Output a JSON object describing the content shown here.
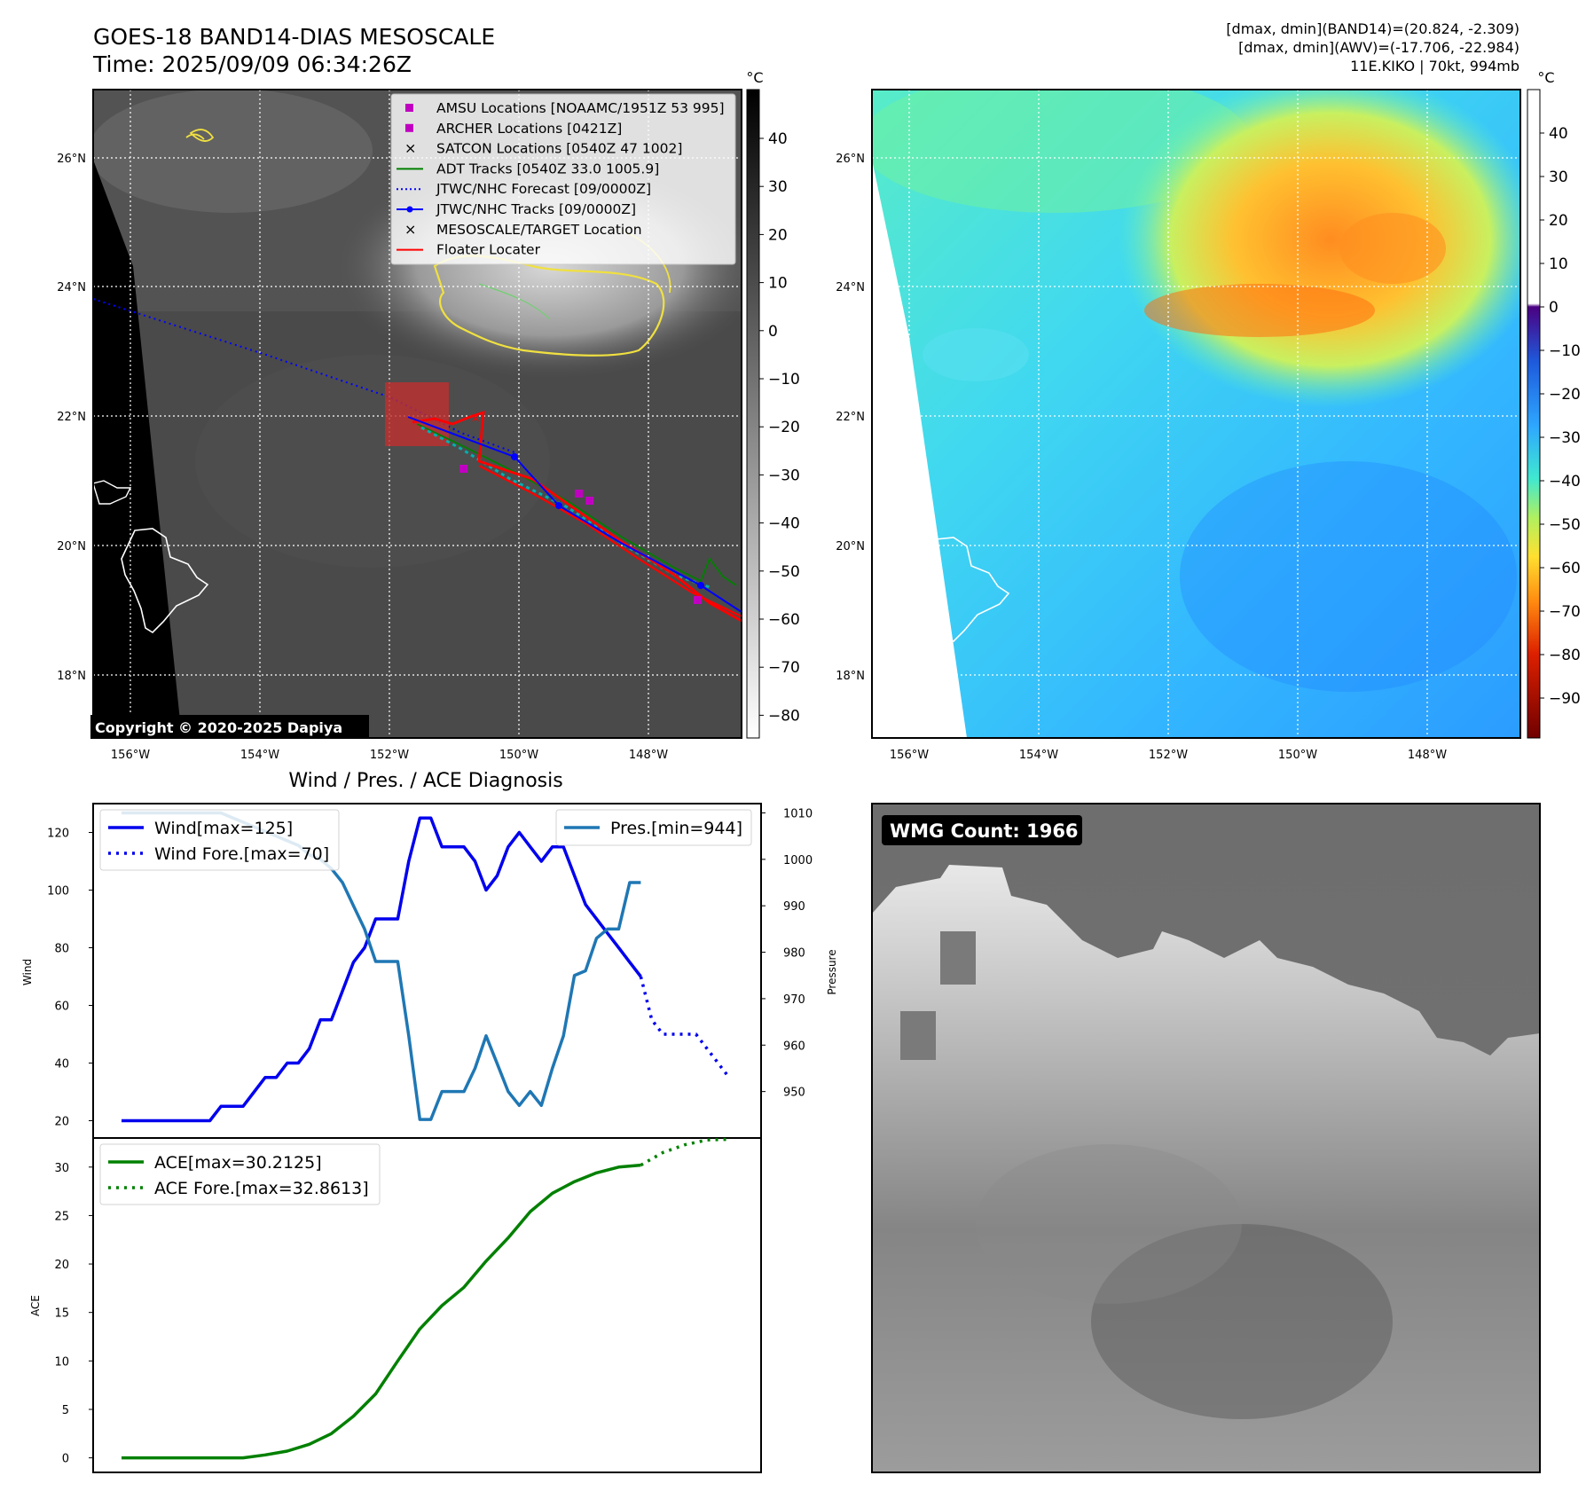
{
  "header": {
    "title": "GOES-18 BAND14-DIAS MESOSCALE",
    "time": "Time: 2025/09/09 06:34:26Z",
    "dmax_band14": "[dmax, dmin](BAND14)=(20.824, -2.309)",
    "dmax_awv": "[dmax, dmin](AWV)=(-17.706, -22.984)",
    "storm_info": "11E.KIKO | 70kt, 994mb"
  },
  "maps": {
    "lat_labels": [
      "26°N",
      "24°N",
      "22°N",
      "20°N",
      "18°N"
    ],
    "lon_labels": [
      "156°W",
      "154°W",
      "152°W",
      "150°W",
      "148°W"
    ],
    "copyright": "Copyright © 2020-2025 Dapiya",
    "left_colorbar": {
      "unit": "°C",
      "ticks": [
        "40",
        "30",
        "20",
        "10",
        "0",
        "−10",
        "−20",
        "−30",
        "−40",
        "−50",
        "−60",
        "−70",
        "−80"
      ]
    },
    "right_colorbar": {
      "unit": "°C",
      "ticks": [
        "40",
        "30",
        "20",
        "10",
        "0",
        "−10",
        "−20",
        "−30",
        "−40",
        "−50",
        "−60",
        "−70",
        "−80",
        "−90"
      ]
    },
    "legend": [
      {
        "label": "AMSU Locations [NOAAMC/1951Z 53 995]",
        "color": "#c000c0",
        "marker": "square"
      },
      {
        "label": "ARCHER Locations [0421Z]",
        "color": "#c000c0",
        "marker": "square"
      },
      {
        "label": "SATCON Locations [0540Z 47 1002]",
        "color": "#00b0b0",
        "marker": "x"
      },
      {
        "label": "ADT Tracks [0540Z 33.0 1005.9]",
        "color": "#008000",
        "marker": "line"
      },
      {
        "label": "JTWC/NHC Forecast [09/0000Z]",
        "color": "#0000ff",
        "marker": "dotted"
      },
      {
        "label": "JTWC/NHC Tracks [09/0000Z]",
        "color": "#0000ff",
        "marker": "line-dot"
      },
      {
        "label": "MESOSCALE/TARGET Location",
        "color": "#ff0000",
        "marker": "x"
      },
      {
        "label": "Floater Locater",
        "color": "#ff0000",
        "marker": "line"
      }
    ]
  },
  "diagnosis": {
    "title": "Wind / Pres. / ACE Diagnosis",
    "wind_ylabel": "Wind",
    "pressure_ylabel": "Pressure",
    "ace_ylabel": "ACE",
    "wind_legend": [
      "Wind[max=125]",
      "Wind Fore.[max=70]"
    ],
    "pressure_legend": "Pres.[min=944]",
    "ace_legend": [
      "ACE[max=30.2125]",
      "ACE Fore.[max=32.8613]"
    ]
  },
  "wmg": {
    "label": "WMG Count: 1966"
  },
  "colors": {
    "wind": "#0000ee",
    "pressure": "#1f77b4",
    "ace": "#008000"
  },
  "chart_data": [
    {
      "type": "line",
      "name": "wind",
      "ylim": [
        14,
        130
      ],
      "yticks": [
        20,
        40,
        60,
        80,
        100,
        120
      ],
      "x_index_max": 55,
      "series": [
        {
          "name": "Wind[max=125]",
          "x": [
            0,
            1,
            2,
            3,
            4,
            5,
            6,
            7,
            8,
            9,
            10,
            11,
            12,
            13,
            14,
            15,
            16,
            17,
            18,
            19,
            20,
            21,
            22,
            23,
            24,
            25,
            26,
            27,
            28,
            29,
            30,
            31,
            32,
            33,
            34,
            35,
            36,
            37,
            38,
            39,
            40,
            41,
            42,
            43,
            44,
            45,
            46,
            47
          ],
          "values": [
            20,
            20,
            20,
            20,
            20,
            20,
            20,
            20,
            20,
            25,
            25,
            25,
            30,
            35,
            35,
            40,
            40,
            45,
            55,
            55,
            65,
            75,
            80,
            90,
            90,
            90,
            110,
            125,
            125,
            115,
            115,
            115,
            110,
            100,
            105,
            115,
            120,
            115,
            110,
            115,
            115,
            105,
            95,
            90,
            85,
            80,
            75,
            70
          ]
        },
        {
          "name": "Wind Fore.[max=70]",
          "x": [
            47,
            48,
            49,
            50,
            51,
            52,
            53,
            54,
            55
          ],
          "values": [
            70,
            55,
            50,
            50,
            50,
            50,
            45,
            40,
            35
          ]
        }
      ]
    },
    {
      "type": "line",
      "name": "pressure",
      "ylim": [
        940,
        1012
      ],
      "yticks": [
        950,
        960,
        970,
        980,
        990,
        1000,
        1010
      ],
      "series": [
        {
          "name": "Pres.[min=944]",
          "x": [
            0,
            1,
            2,
            3,
            4,
            5,
            6,
            7,
            8,
            9,
            10,
            11,
            12,
            13,
            14,
            15,
            16,
            17,
            18,
            19,
            20,
            21,
            22,
            23,
            24,
            25,
            26,
            27,
            28,
            29,
            30,
            31,
            32,
            33,
            34,
            35,
            36,
            37,
            38,
            39,
            40,
            41,
            42,
            43,
            44,
            45,
            46,
            47
          ],
          "values": [
            1010,
            1010,
            1010,
            1010,
            1010,
            1010,
            1010,
            1010,
            1010,
            1010,
            1009,
            1008,
            1007,
            1006,
            1005,
            1004,
            1003,
            1001,
            1000,
            998,
            995,
            990,
            985,
            978,
            978,
            978,
            962,
            944,
            944,
            950,
            950,
            950,
            955,
            962,
            956,
            950,
            947,
            950,
            947,
            955,
            962,
            975,
            976,
            983,
            985,
            985,
            995,
            995
          ]
        }
      ]
    },
    {
      "type": "line",
      "name": "ace",
      "ylim": [
        -1.5,
        33
      ],
      "yticks": [
        0,
        5,
        10,
        15,
        20,
        25,
        30
      ],
      "series": [
        {
          "name": "ACE[max=30.2125]",
          "x": [
            0,
            4,
            8,
            11,
            13,
            15,
            17,
            19,
            21,
            23,
            25,
            27,
            29,
            31,
            33,
            35,
            37,
            39,
            41,
            43,
            45,
            47
          ],
          "values": [
            0,
            0,
            0,
            0,
            0.3,
            0.7,
            1.4,
            2.5,
            4.3,
            6.6,
            10,
            13.3,
            15.7,
            17.6,
            20.3,
            22.7,
            25.4,
            27.3,
            28.5,
            29.4,
            30,
            30.2
          ]
        },
        {
          "name": "ACE Fore.[max=32.8613]",
          "x": [
            47,
            49,
            51,
            53,
            55
          ],
          "values": [
            30.2,
            31.5,
            32.3,
            32.8,
            32.86
          ]
        }
      ]
    }
  ]
}
